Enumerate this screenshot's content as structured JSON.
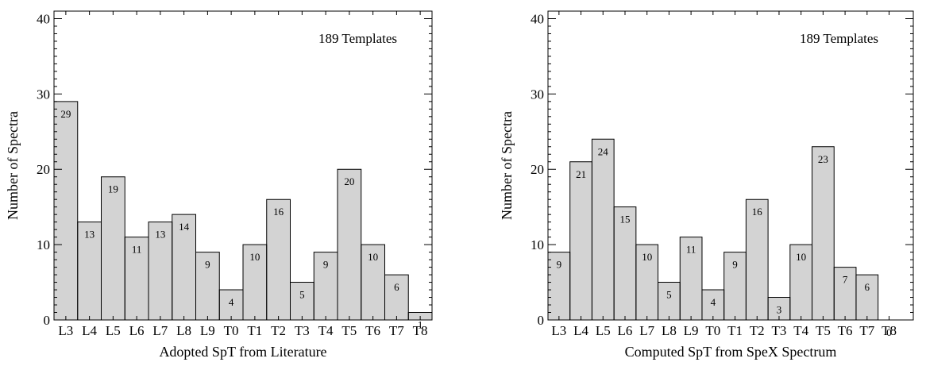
{
  "chart_data": [
    {
      "type": "bar",
      "style": "step",
      "categories": [
        "L3",
        "L4",
        "L5",
        "L6",
        "L7",
        "L8",
        "L9",
        "T0",
        "T1",
        "T2",
        "T3",
        "T4",
        "T5",
        "T6",
        "T7",
        "T8"
      ],
      "values": [
        29,
        13,
        19,
        11,
        13,
        14,
        9,
        4,
        10,
        16,
        5,
        9,
        20,
        10,
        6,
        1
      ],
      "value_labels": [
        "29",
        "13",
        "19",
        "11",
        "13",
        "14",
        "9",
        "4",
        "10",
        "16",
        "5",
        "9",
        "20",
        "10",
        "6",
        "1"
      ],
      "xlabel": "Adopted SpT from Literature",
      "ylabel": "Number of Spectra",
      "ylim": [
        0,
        41
      ],
      "yticks": [
        0,
        10,
        20,
        30,
        40
      ],
      "ytick_labels": [
        "0",
        "10",
        "20",
        "30",
        "40"
      ],
      "annotation": "189 Templates",
      "fill_color": "#d3d3d3",
      "grid": false
    },
    {
      "type": "bar",
      "style": "step",
      "categories": [
        "L3",
        "L4",
        "L5",
        "L6",
        "L7",
        "L8",
        "L9",
        "T0",
        "T1",
        "T2",
        "T3",
        "T4",
        "T5",
        "T6",
        "T7",
        "T8"
      ],
      "values": [
        9,
        21,
        24,
        15,
        10,
        5,
        11,
        4,
        9,
        16,
        3,
        10,
        23,
        7,
        6,
        0
      ],
      "value_labels": [
        "9",
        "21",
        "24",
        "15",
        "10",
        "5",
        "11",
        "4",
        "9",
        "16",
        "3",
        "10",
        "23",
        "7",
        "6",
        "0"
      ],
      "xlabel": "Computed SpT from SpeX Spectrum",
      "ylabel": "Number of Spectra",
      "ylim": [
        0,
        41
      ],
      "yticks": [
        0,
        10,
        20,
        30,
        40
      ],
      "ytick_labels": [
        "0",
        "10",
        "20",
        "30",
        "40"
      ],
      "annotation": "189 Templates",
      "fill_color": "#d3d3d3",
      "grid": false
    }
  ]
}
